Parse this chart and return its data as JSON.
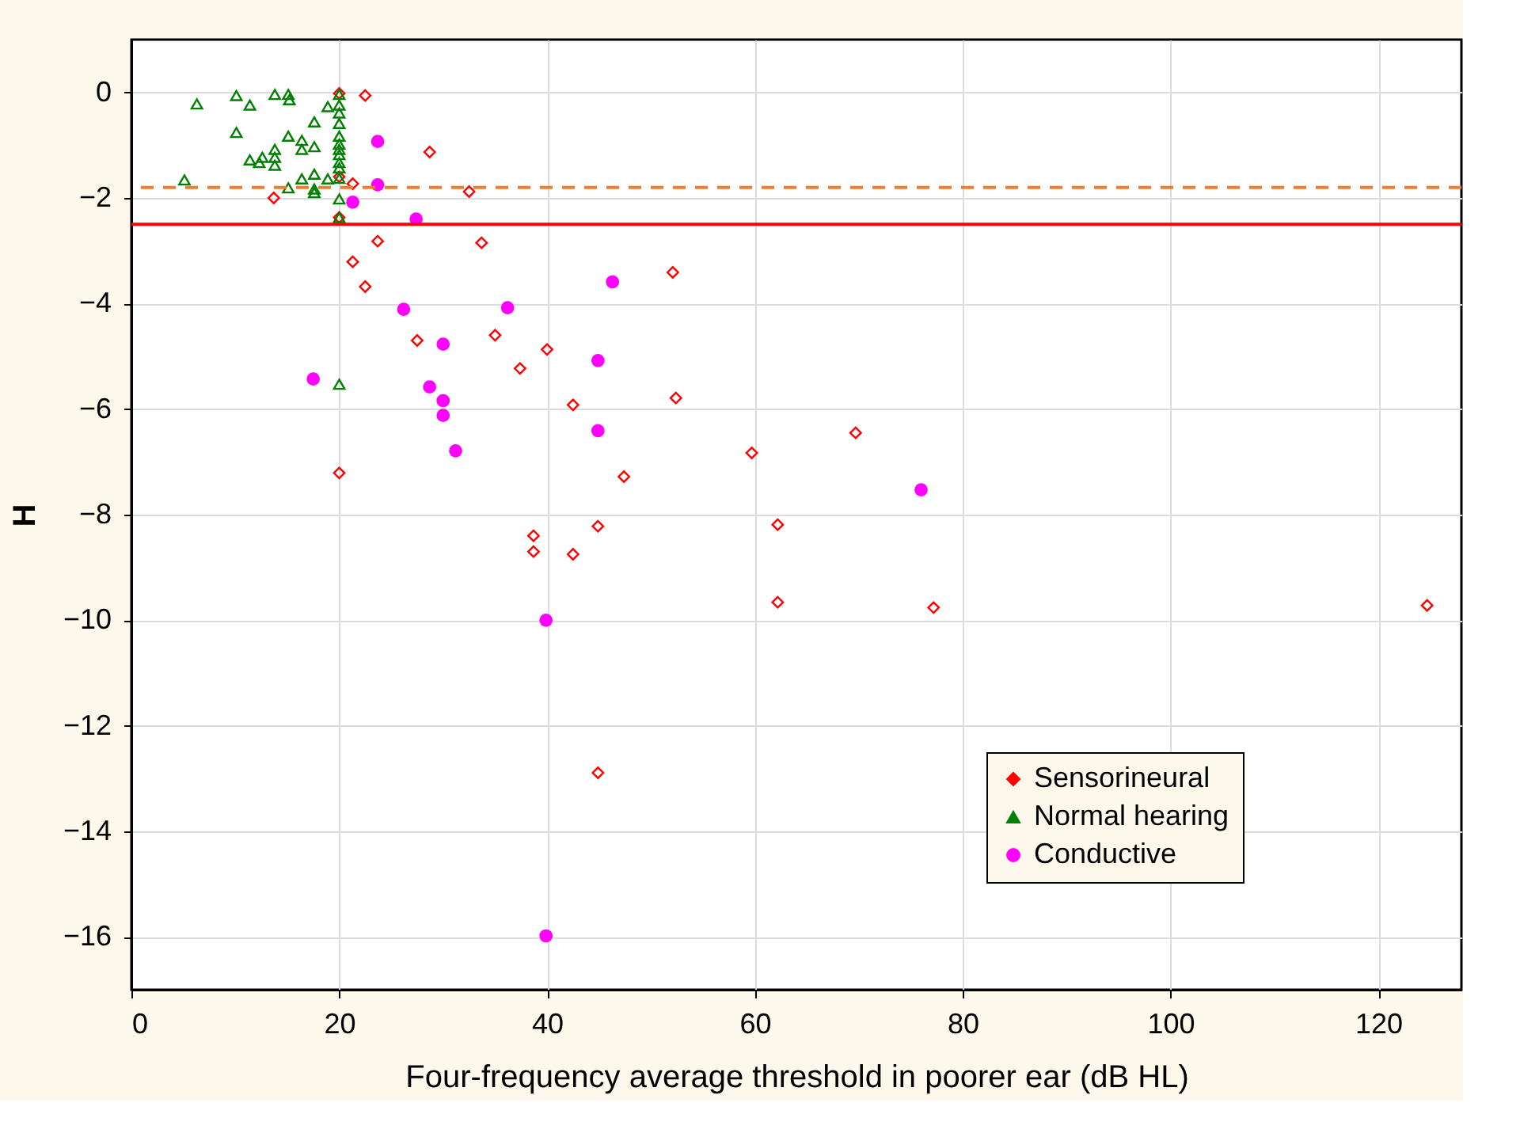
{
  "chart_data": {
    "type": "scatter",
    "xlabel": "Four-frequency average threshold in poorer ear (dB HL)",
    "ylabel": "H",
    "xlim": [
      0,
      128
    ],
    "ylim": [
      -17,
      1
    ],
    "xticks": [
      0,
      20,
      40,
      60,
      80,
      100,
      120
    ],
    "yticks": [
      0,
      -2,
      -4,
      -6,
      -8,
      -10,
      -12,
      -14,
      -16
    ],
    "grid": true,
    "legend": "bottom right",
    "ref_lines": [
      {
        "axis": "y",
        "value": -1.8,
        "color": "#ed7d31",
        "line_style": "dashed"
      },
      {
        "axis": "y",
        "value": -2.5,
        "color": "#ff0000",
        "line_style": "solid"
      }
    ],
    "series": [
      {
        "name": "Sensorineural",
        "color": "#ff0000",
        "marker": "diamond",
        "x": [
          20,
          22.5,
          28.7,
          13.7,
          21.3,
          20,
          20,
          32.5,
          23.7,
          33.7,
          21.3,
          22.5,
          52.1,
          27.5,
          35.0,
          40.0,
          37.4,
          42.5,
          52.4,
          20,
          47.4,
          38.7,
          38.7,
          42.5,
          44.9,
          69.7,
          59.7,
          62.2,
          62.2,
          77.2,
          124.7,
          44.9
        ],
        "values": [
          -0.02,
          -0.06,
          -1.13,
          -2.0,
          -1.73,
          -1.6,
          -2.37,
          -1.88,
          -2.82,
          -2.85,
          -3.21,
          -3.68,
          -3.41,
          -4.7,
          -4.6,
          -4.87,
          -5.23,
          -5.92,
          -5.79,
          -7.21,
          -7.28,
          -8.4,
          -8.7,
          -8.75,
          -8.22,
          -6.45,
          -6.83,
          -8.19,
          -9.66,
          -9.76,
          -9.72,
          -12.89
        ]
      },
      {
        "name": "Normal hearing",
        "color": "#008000",
        "marker": "triangle",
        "x": [
          6.3,
          10.1,
          11.4,
          13.8,
          15.1,
          15.2,
          18.9,
          17.6,
          10.1,
          15.1,
          16.4,
          16.4,
          17.6,
          13.8,
          13.8,
          12.6,
          11.4,
          12.3,
          13.8,
          5.1,
          15.1,
          16.4,
          17.6,
          17.6,
          17.6,
          18.9,
          20,
          20,
          20,
          20,
          20,
          20,
          20,
          20,
          20,
          20,
          20,
          20,
          20,
          20
        ],
        "values": [
          -0.22,
          -0.06,
          -0.24,
          -0.04,
          -0.04,
          -0.14,
          -0.27,
          -0.56,
          -0.76,
          -0.83,
          -0.91,
          -1.08,
          -1.03,
          -1.08,
          -1.23,
          -1.23,
          -1.28,
          -1.33,
          -1.38,
          -1.66,
          -1.81,
          -1.64,
          -1.55,
          -1.83,
          -1.9,
          -1.64,
          -0.04,
          -0.24,
          -0.39,
          -0.59,
          -0.83,
          -0.98,
          -1.08,
          -1.18,
          -1.33,
          -1.43,
          -1.63,
          -2.02,
          -2.37,
          -5.53
        ]
      },
      {
        "name": "Conductive",
        "color": "#ff00ff",
        "marker": "circle",
        "x": [
          23.7,
          23.7,
          21.3,
          27.4,
          26.2,
          46.3,
          36.2,
          30.0,
          44.9,
          17.5,
          28.7,
          30,
          30,
          44.9,
          31.2,
          76.0,
          39.9,
          39.9
        ],
        "values": [
          -0.93,
          -1.75,
          -2.08,
          -2.4,
          -4.11,
          -3.59,
          -4.08,
          -4.77,
          -5.08,
          -5.43,
          -5.58,
          -5.84,
          -6.12,
          -6.41,
          -6.79,
          -7.53,
          -10.0,
          -15.98
        ]
      }
    ]
  }
}
